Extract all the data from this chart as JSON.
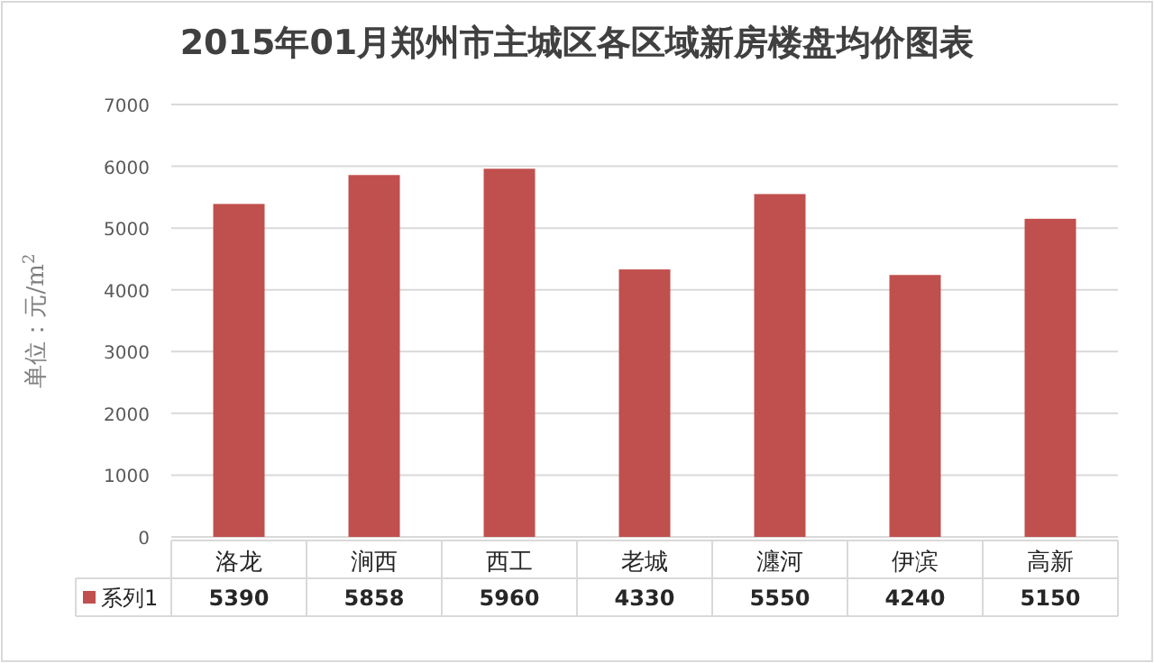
{
  "chart_data": {
    "type": "bar",
    "title": "2015年01月郑州市主城区各区域新房楼盘均价图表",
    "ylabel": "单位：元/m$^{2}$",
    "categories": [
      "洛龙",
      "涧西",
      "西工",
      "老城",
      "瀍河",
      "伊滨",
      "高新"
    ],
    "series": [
      {
        "name": "系列1",
        "color": "#c0504d",
        "values": [
          5390,
          5858,
          5960,
          4330,
          5550,
          4240,
          5150
        ]
      }
    ],
    "ylim": [
      0,
      7000
    ],
    "yticks": [
      0,
      1000,
      2000,
      3000,
      4000,
      5000,
      6000,
      7000
    ],
    "grid": "y",
    "legend": "bottom left",
    "data_labels": true
  }
}
